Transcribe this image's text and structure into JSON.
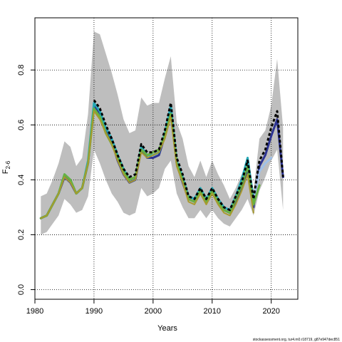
{
  "chart_data": {
    "type": "line",
    "xlabel": "Years",
    "ylabel_main": "F",
    "ylabel_sub": "2-6",
    "xlim": [
      1980,
      2024.5
    ],
    "ylim": [
      -0.035,
      0.99
    ],
    "x_ticks": [
      1980,
      1990,
      2000,
      2010,
      2020
    ],
    "y_ticks": [
      0.0,
      0.2,
      0.4,
      0.6,
      0.8
    ],
    "y_tick_labels": [
      "0.0",
      "0.2",
      "0.4",
      "0.6",
      "0.8"
    ],
    "grid": true,
    "footer_text": "stockassessment.org, tur4.m0.r18719, g87e947dec851",
    "band": {
      "color": "#bebebe",
      "x": [
        1981,
        1982,
        1983,
        1984,
        1985,
        1986,
        1987,
        1988,
        1989,
        1990,
        1991,
        1992,
        1993,
        1994,
        1995,
        1996,
        1997,
        1998,
        1999,
        2000,
        2001,
        2002,
        2003,
        2004,
        2005,
        2006,
        2007,
        2008,
        2009,
        2010,
        2011,
        2012,
        2013,
        2014,
        2015,
        2016,
        2017,
        2018,
        2019,
        2020,
        2021,
        2022
      ],
      "upper": [
        0.34,
        0.35,
        0.4,
        0.46,
        0.54,
        0.52,
        0.45,
        0.48,
        0.64,
        0.94,
        0.93,
        0.86,
        0.79,
        0.71,
        0.62,
        0.57,
        0.58,
        0.7,
        0.67,
        0.68,
        0.68,
        0.77,
        0.85,
        0.61,
        0.55,
        0.45,
        0.41,
        0.47,
        0.41,
        0.47,
        0.42,
        0.38,
        0.33,
        0.37,
        0.42,
        0.47,
        0.36,
        0.55,
        0.58,
        0.67,
        0.84,
        0.59
      ],
      "lower": [
        0.2,
        0.21,
        0.24,
        0.27,
        0.33,
        0.31,
        0.28,
        0.29,
        0.34,
        0.51,
        0.46,
        0.4,
        0.35,
        0.32,
        0.28,
        0.27,
        0.28,
        0.37,
        0.34,
        0.35,
        0.37,
        0.44,
        0.47,
        0.35,
        0.3,
        0.26,
        0.26,
        0.29,
        0.26,
        0.29,
        0.26,
        0.24,
        0.23,
        0.26,
        0.29,
        0.33,
        0.27,
        0.36,
        0.41,
        0.47,
        0.51,
        0.29
      ]
    },
    "series": [
      {
        "color": "#2c3392",
        "width": 3,
        "x": [
          1981,
          1982,
          1983,
          1984,
          1985,
          1986,
          1987,
          1988,
          1989,
          1990,
          1991,
          1992,
          1993,
          1994,
          1995,
          1996,
          1997,
          1998,
          1999,
          2000,
          2001,
          2002,
          2003,
          2004,
          2005,
          2006,
          2007,
          2008,
          2009,
          2010,
          2011,
          2012,
          2013,
          2014,
          2015,
          2016,
          2017,
          2018,
          2019,
          2020,
          2021,
          2022
        ],
        "values": [
          0.26,
          0.27,
          0.31,
          0.35,
          0.41,
          0.39,
          0.35,
          0.37,
          0.46,
          0.67,
          0.64,
          0.58,
          0.54,
          0.47,
          0.42,
          0.39,
          0.4,
          0.51,
          0.48,
          0.48,
          0.49,
          0.56,
          0.66,
          0.46,
          0.39,
          0.33,
          0.32,
          0.36,
          0.32,
          0.36,
          0.32,
          0.29,
          0.28,
          0.32,
          0.37,
          0.44,
          0.3,
          0.45,
          0.49,
          0.56,
          0.62,
          0.41
        ]
      },
      {
        "color": "#9fc1e9",
        "width": 3,
        "x": [
          2016,
          2017,
          2018,
          2019,
          2020
        ],
        "values": [
          0.45,
          0.32,
          0.43,
          0.46,
          0.48
        ]
      },
      {
        "color": "#26a9b6",
        "width": 3,
        "x": [
          1981,
          1982,
          1983,
          1984,
          1985,
          1986,
          1987,
          1988,
          1989,
          1990,
          1991,
          1992,
          1993,
          1994,
          1995,
          1996,
          1997,
          1998,
          1999,
          2000,
          2001,
          2002,
          2003,
          2004,
          2005,
          2006,
          2007,
          2008,
          2009,
          2010,
          2011,
          2012,
          2013,
          2014,
          2015,
          2016,
          2017
        ],
        "values": [
          0.26,
          0.27,
          0.31,
          0.35,
          0.42,
          0.4,
          0.35,
          0.37,
          0.47,
          0.68,
          0.65,
          0.59,
          0.55,
          0.49,
          0.44,
          0.4,
          0.41,
          0.52,
          0.49,
          0.49,
          0.5,
          0.57,
          0.67,
          0.47,
          0.41,
          0.34,
          0.33,
          0.37,
          0.33,
          0.37,
          0.33,
          0.3,
          0.29,
          0.34,
          0.4,
          0.48,
          0.33
        ]
      },
      {
        "color": "#68b240",
        "width": 3,
        "x": [
          1981,
          1982,
          1983,
          1984,
          1985,
          1986,
          1987,
          1988,
          1989,
          1990,
          1991,
          1992,
          1993,
          1994,
          1995,
          1996,
          1997,
          1998,
          1999,
          2000,
          2001,
          2002,
          2003,
          2004,
          2005,
          2006,
          2007,
          2008,
          2009,
          2010,
          2011,
          2012,
          2013,
          2014,
          2015,
          2016,
          2017,
          2018
        ],
        "values": [
          0.26,
          0.27,
          0.31,
          0.35,
          0.42,
          0.4,
          0.35,
          0.37,
          0.46,
          0.66,
          0.63,
          0.57,
          0.53,
          0.48,
          0.43,
          0.4,
          0.41,
          0.51,
          0.49,
          0.5,
          0.51,
          0.56,
          0.64,
          0.46,
          0.4,
          0.33,
          0.32,
          0.36,
          0.32,
          0.36,
          0.32,
          0.29,
          0.28,
          0.33,
          0.38,
          0.45,
          0.31,
          0.38
        ]
      },
      {
        "color": "#a79a2e",
        "width": 2,
        "x": [
          1981,
          1982,
          1983,
          1984,
          1985,
          1986,
          1987,
          1988,
          1989,
          1990,
          1991,
          1992,
          1993,
          1994,
          1995,
          1996,
          1997,
          1998,
          1999,
          2000,
          2001,
          2002,
          2003,
          2004,
          2005,
          2006,
          2007,
          2008,
          2009,
          2010,
          2011,
          2012,
          2013,
          2014,
          2015,
          2016,
          2017
        ],
        "values": [
          0.26,
          0.27,
          0.31,
          0.35,
          0.41,
          0.39,
          0.35,
          0.37,
          0.46,
          0.65,
          0.62,
          0.57,
          0.53,
          0.47,
          0.42,
          0.39,
          0.4,
          0.5,
          0.48,
          0.49,
          0.5,
          0.55,
          0.63,
          0.45,
          0.39,
          0.32,
          0.31,
          0.35,
          0.31,
          0.35,
          0.31,
          0.28,
          0.27,
          0.31,
          0.36,
          0.42,
          0.28
        ]
      },
      {
        "color": "#000000",
        "width": 3,
        "dash": "4 3",
        "x": [
          1990,
          1991,
          1992,
          1993,
          1994,
          1995,
          1996,
          1997,
          1998,
          1999,
          2000,
          2001,
          2002,
          2003,
          2004,
          2005,
          2006,
          2007,
          2008,
          2009,
          2010,
          2011,
          2012,
          2013,
          2014,
          2015,
          2016,
          2017,
          2018,
          2019,
          2020,
          2021,
          2022
        ],
        "values": [
          0.69,
          0.66,
          0.6,
          0.55,
          0.49,
          0.44,
          0.41,
          0.42,
          0.53,
          0.5,
          0.5,
          0.51,
          0.58,
          0.68,
          0.48,
          0.42,
          0.34,
          0.33,
          0.37,
          0.33,
          0.37,
          0.33,
          0.3,
          0.29,
          0.34,
          0.39,
          0.47,
          0.33,
          0.47,
          0.51,
          0.59,
          0.65,
          0.41
        ]
      }
    ]
  }
}
